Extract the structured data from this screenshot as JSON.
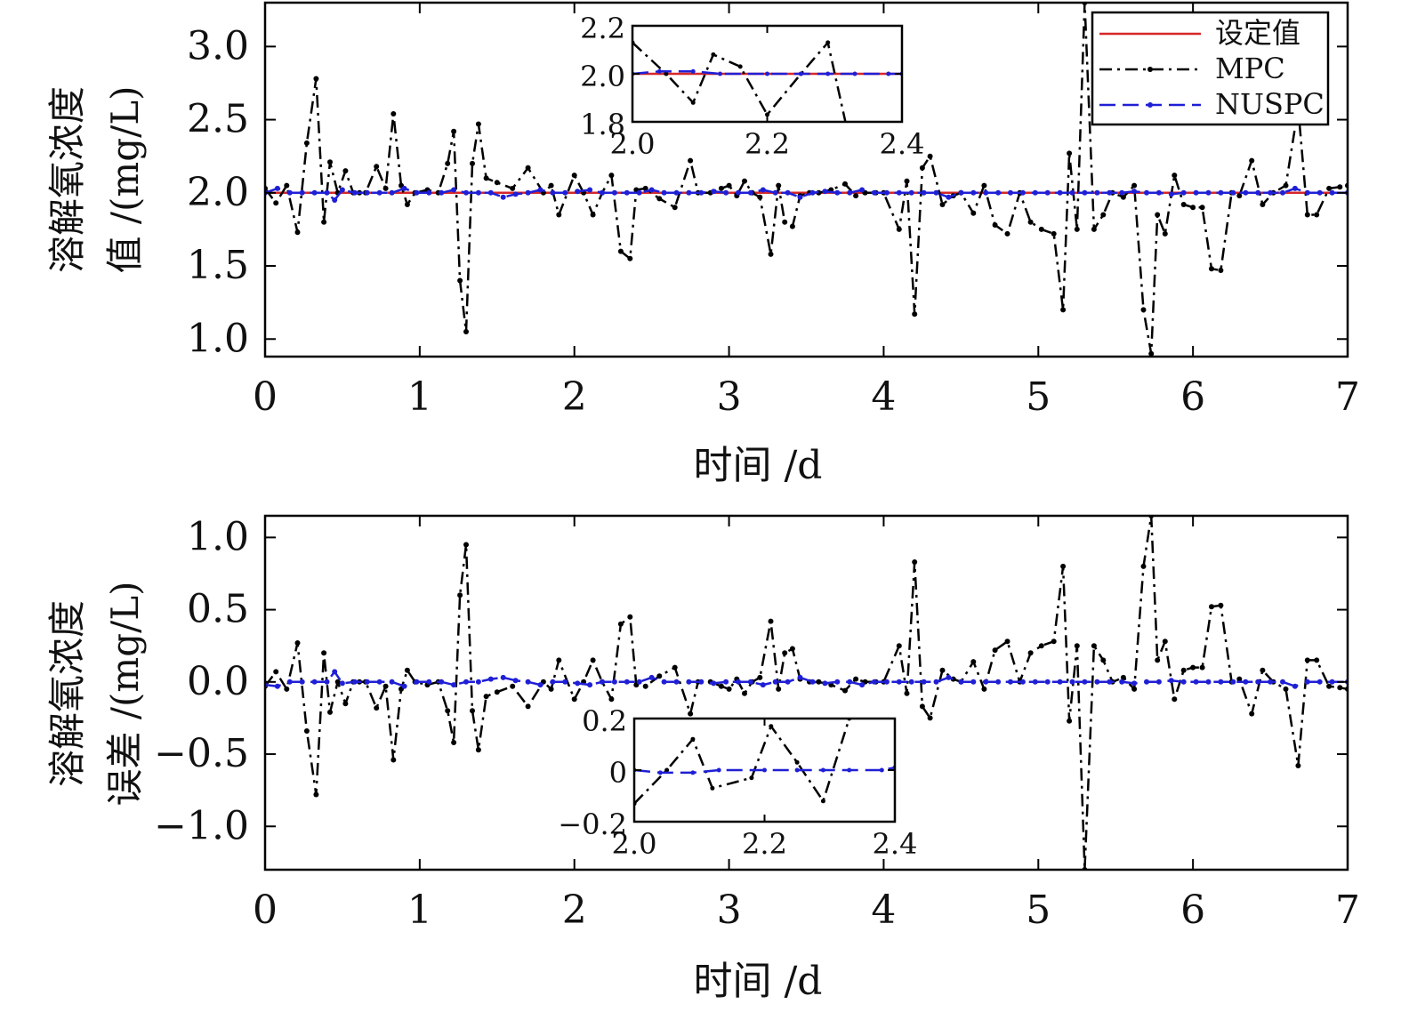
{
  "colors": {
    "setpoint": "#d62728",
    "mpc": "#000000",
    "nuspc": "#1f1fd6"
  },
  "chart_data": [
    {
      "type": "line",
      "ylabel_line1": "溶解氧浓度",
      "ylabel_line2": "值 /(mg/L)",
      "xlabel": "时间 /d",
      "xlim": [
        0,
        7
      ],
      "ylim": [
        0.88,
        3.3
      ],
      "xticks": [
        "0",
        "1",
        "2",
        "3",
        "4",
        "5",
        "6",
        "7"
      ],
      "yticks": [
        "1.0",
        "1.5",
        "2.0",
        "2.5",
        "3.0"
      ],
      "legend": {
        "position": "top-right",
        "entries": [
          "设定值",
          "MPC",
          "NUSPC"
        ]
      },
      "series": [
        {
          "name": "设定值",
          "style": "solid",
          "x": [
            0,
            7
          ],
          "y": [
            2.0,
            2.0
          ]
        },
        {
          "name": "MPC",
          "style": "dashdot",
          "x": [
            0.0,
            0.07,
            0.14,
            0.21,
            0.27,
            0.33,
            0.38,
            0.42,
            0.47,
            0.52,
            0.57,
            0.61,
            0.65,
            0.72,
            0.78,
            0.83,
            0.88,
            0.92,
            0.97,
            1.05,
            1.12,
            1.18,
            1.22,
            1.26,
            1.3,
            1.34,
            1.38,
            1.43,
            1.5,
            1.6,
            1.7,
            1.8,
            1.85,
            1.9,
            2.0,
            2.06,
            2.12,
            2.18,
            2.24,
            2.3,
            2.36,
            2.4,
            2.46,
            2.55,
            2.65,
            2.75,
            2.8,
            2.88,
            2.95,
            3.0,
            3.05,
            3.1,
            3.15,
            3.2,
            3.27,
            3.32,
            3.36,
            3.41,
            3.46,
            3.52,
            3.58,
            3.66,
            3.75,
            3.82,
            3.88,
            3.95,
            4.0,
            4.1,
            4.15,
            4.2,
            4.25,
            4.3,
            4.38,
            4.45,
            4.5,
            4.58,
            4.65,
            4.72,
            4.8,
            4.88,
            4.95,
            5.02,
            5.1,
            5.16,
            5.2,
            5.25,
            5.3,
            5.36,
            5.42,
            5.48,
            5.55,
            5.62,
            5.68,
            5.73,
            5.77,
            5.82,
            5.88,
            5.94,
            6.0,
            6.06,
            6.12,
            6.18,
            6.25,
            6.3,
            6.38,
            6.45,
            6.52,
            6.6,
            6.68,
            6.74,
            6.8,
            6.88,
            6.95,
            7.0
          ],
          "y": [
            2.03,
            1.93,
            2.05,
            1.73,
            2.34,
            2.78,
            1.8,
            2.21,
            2.0,
            2.15,
            2.0,
            2.0,
            2.0,
            2.18,
            2.03,
            2.54,
            2.05,
            1.92,
            2.0,
            2.02,
            2.0,
            2.2,
            2.42,
            1.4,
            1.05,
            2.2,
            2.47,
            2.1,
            2.07,
            2.03,
            2.17,
            2.0,
            2.05,
            1.85,
            2.12,
            2.0,
            1.85,
            2.0,
            2.12,
            1.6,
            1.55,
            2.02,
            2.03,
            1.96,
            1.9,
            2.22,
            2.0,
            2.0,
            2.03,
            2.05,
            1.98,
            2.08,
            2.0,
            1.97,
            1.58,
            2.05,
            1.8,
            1.77,
            1.98,
            2.0,
            2.0,
            2.02,
            2.06,
            1.98,
            2.0,
            2.0,
            2.0,
            1.75,
            2.08,
            1.17,
            2.17,
            2.25,
            1.92,
            1.98,
            2.0,
            1.86,
            2.05,
            1.78,
            1.72,
            2.0,
            1.8,
            1.75,
            1.72,
            1.2,
            2.27,
            1.75,
            3.3,
            1.75,
            1.85,
            2.0,
            1.97,
            2.05,
            1.2,
            0.9,
            1.85,
            1.72,
            2.12,
            1.92,
            1.9,
            1.9,
            1.48,
            1.47,
            2.0,
            1.98,
            2.22,
            1.92,
            2.0,
            2.05,
            2.58,
            1.85,
            1.85,
            2.03,
            2.04,
            2.05
          ]
        },
        {
          "name": "NUSPC",
          "style": "dashed",
          "x": [
            0.0,
            0.08,
            0.16,
            0.24,
            0.32,
            0.4,
            0.45,
            0.5,
            0.58,
            0.66,
            0.74,
            0.82,
            0.9,
            0.98,
            1.06,
            1.14,
            1.22,
            1.3,
            1.38,
            1.46,
            1.54,
            1.62,
            1.7,
            1.78,
            1.86,
            1.94,
            2.02,
            2.1,
            2.18,
            2.26,
            2.34,
            2.42,
            2.5,
            2.58,
            2.66,
            2.74,
            2.82,
            2.9,
            2.98,
            3.06,
            3.14,
            3.22,
            3.3,
            3.38,
            3.46,
            3.54,
            3.62,
            3.7,
            3.78,
            3.86,
            3.94,
            4.02,
            4.1,
            4.18,
            4.26,
            4.34,
            4.42,
            4.5,
            4.58,
            4.66,
            4.74,
            4.82,
            4.9,
            4.98,
            5.06,
            5.14,
            5.22,
            5.3,
            5.38,
            5.46,
            5.54,
            5.62,
            5.7,
            5.78,
            5.86,
            5.94,
            6.02,
            6.1,
            6.18,
            6.26,
            6.34,
            6.42,
            6.5,
            6.58,
            6.66,
            6.74,
            6.82,
            6.9,
            7.0
          ],
          "y": [
            2.0,
            2.03,
            2.0,
            2.0,
            2.0,
            2.0,
            1.95,
            2.02,
            2.0,
            2.0,
            2.0,
            2.0,
            2.03,
            2.0,
            2.0,
            2.0,
            2.02,
            2.0,
            2.0,
            2.0,
            1.97,
            1.99,
            2.0,
            2.02,
            2.0,
            2.0,
            2.01,
            2.02,
            2.0,
            2.0,
            2.0,
            2.0,
            2.02,
            2.0,
            2.0,
            2.0,
            2.0,
            2.01,
            2.0,
            2.0,
            2.0,
            2.02,
            2.0,
            2.0,
            1.97,
            2.0,
            2.01,
            2.0,
            2.0,
            2.02,
            2.0,
            2.0,
            2.0,
            2.0,
            2.0,
            2.0,
            1.97,
            2.0,
            2.0,
            2.0,
            2.0,
            2.0,
            2.0,
            2.0,
            2.0,
            2.0,
            2.0,
            2.0,
            2.0,
            2.0,
            2.0,
            2.01,
            2.0,
            2.0,
            1.99,
            2.0,
            2.0,
            2.0,
            2.0,
            2.0,
            2.0,
            2.0,
            2.0,
            2.0,
            2.03,
            2.0,
            2.0,
            2.0,
            2.0
          ]
        }
      ],
      "inset": {
        "xlim": [
          2.0,
          2.4
        ],
        "ylim": [
          1.8,
          2.2
        ],
        "xticks": [
          "2.0",
          "2.2",
          "2.4"
        ],
        "yticks": [
          "1.8",
          "2.0",
          "2.2"
        ],
        "series": [
          {
            "name": "设定值",
            "x": [
              2.0,
              2.4
            ],
            "y": [
              2.0,
              2.0
            ]
          },
          {
            "name": "MPC",
            "x": [
              2.0,
              2.05,
              2.09,
              2.12,
              2.16,
              2.2,
              2.25,
              2.29,
              2.32
            ],
            "y": [
              2.13,
              2.0,
              1.88,
              2.08,
              2.03,
              1.83,
              2.0,
              2.13,
              1.75
            ]
          },
          {
            "name": "NUSPC",
            "x": [
              2.0,
              2.04,
              2.09,
              2.13,
              2.2,
              2.25,
              2.29,
              2.33,
              2.38,
              2.4
            ],
            "y": [
              2.0,
              2.01,
              2.01,
              2.0,
              2.0,
              2.0,
              2.0,
              2.0,
              2.0,
              2.0
            ]
          }
        ]
      }
    },
    {
      "type": "line",
      "ylabel_line1": "溶解氧浓度",
      "ylabel_line2": "误差 /(mg/L)",
      "xlabel": "时间 /d",
      "xlim": [
        0,
        7
      ],
      "ylim": [
        -1.3,
        1.15
      ],
      "xticks": [
        "0",
        "1",
        "2",
        "3",
        "4",
        "5",
        "6",
        "7"
      ],
      "yticks": [
        "−1.0",
        "−0.5",
        "0.0",
        "0.5",
        "1.0"
      ],
      "series": [
        {
          "name": "MPC",
          "style": "dashdot",
          "x": [
            0.0,
            0.07,
            0.14,
            0.21,
            0.27,
            0.33,
            0.38,
            0.42,
            0.47,
            0.52,
            0.57,
            0.61,
            0.65,
            0.72,
            0.78,
            0.83,
            0.88,
            0.92,
            0.97,
            1.05,
            1.12,
            1.18,
            1.22,
            1.26,
            1.3,
            1.34,
            1.38,
            1.43,
            1.5,
            1.6,
            1.7,
            1.8,
            1.85,
            1.9,
            2.0,
            2.06,
            2.12,
            2.18,
            2.24,
            2.3,
            2.36,
            2.4,
            2.46,
            2.55,
            2.65,
            2.75,
            2.8,
            2.88,
            2.95,
            3.0,
            3.05,
            3.1,
            3.15,
            3.2,
            3.27,
            3.32,
            3.36,
            3.41,
            3.46,
            3.52,
            3.58,
            3.66,
            3.75,
            3.82,
            3.88,
            3.95,
            4.0,
            4.1,
            4.15,
            4.2,
            4.25,
            4.3,
            4.38,
            4.45,
            4.5,
            4.58,
            4.65,
            4.72,
            4.8,
            4.88,
            4.95,
            5.02,
            5.1,
            5.16,
            5.2,
            5.25,
            5.3,
            5.36,
            5.42,
            5.48,
            5.55,
            5.62,
            5.68,
            5.73,
            5.77,
            5.82,
            5.88,
            5.94,
            6.0,
            6.06,
            6.12,
            6.18,
            6.25,
            6.3,
            6.38,
            6.45,
            6.52,
            6.6,
            6.68,
            6.74,
            6.8,
            6.88,
            6.95,
            7.0
          ],
          "y": [
            -0.03,
            0.07,
            -0.05,
            0.27,
            -0.34,
            -0.78,
            0.2,
            -0.21,
            0.0,
            -0.15,
            0.0,
            0.0,
            0.0,
            -0.18,
            -0.03,
            -0.54,
            -0.05,
            0.08,
            0.0,
            -0.02,
            0.0,
            -0.2,
            -0.42,
            0.6,
            0.95,
            -0.2,
            -0.47,
            -0.1,
            -0.07,
            -0.03,
            -0.17,
            0.0,
            -0.05,
            0.15,
            -0.12,
            0.0,
            0.15,
            0.0,
            -0.12,
            0.4,
            0.45,
            -0.02,
            -0.03,
            0.04,
            0.1,
            -0.22,
            0.0,
            0.0,
            -0.03,
            -0.05,
            0.02,
            -0.08,
            0.0,
            0.03,
            0.42,
            -0.05,
            0.2,
            0.23,
            0.02,
            0.0,
            0.0,
            -0.02,
            -0.06,
            0.02,
            0.0,
            0.0,
            0.0,
            0.25,
            -0.08,
            0.83,
            -0.17,
            -0.25,
            0.08,
            0.02,
            0.0,
            0.14,
            -0.05,
            0.22,
            0.28,
            0.0,
            0.2,
            0.25,
            0.28,
            0.8,
            -0.27,
            0.25,
            -1.3,
            0.25,
            0.15,
            0.0,
            0.03,
            -0.05,
            0.8,
            1.15,
            0.15,
            0.28,
            -0.12,
            0.08,
            0.1,
            0.1,
            0.52,
            0.53,
            0.0,
            0.02,
            -0.22,
            0.08,
            0.0,
            -0.05,
            -0.58,
            0.15,
            0.15,
            -0.03,
            -0.04,
            -0.05
          ]
        },
        {
          "name": "NUSPC",
          "style": "dashed",
          "x": [
            0.0,
            0.08,
            0.16,
            0.24,
            0.32,
            0.4,
            0.45,
            0.5,
            0.58,
            0.66,
            0.74,
            0.82,
            0.9,
            0.98,
            1.06,
            1.14,
            1.22,
            1.3,
            1.38,
            1.46,
            1.54,
            1.62,
            1.7,
            1.78,
            1.86,
            1.94,
            2.02,
            2.1,
            2.18,
            2.26,
            2.34,
            2.42,
            2.5,
            2.58,
            2.66,
            2.74,
            2.82,
            2.9,
            2.98,
            3.06,
            3.14,
            3.22,
            3.3,
            3.38,
            3.46,
            3.54,
            3.62,
            3.7,
            3.78,
            3.86,
            3.94,
            4.02,
            4.1,
            4.18,
            4.26,
            4.34,
            4.42,
            4.5,
            4.58,
            4.66,
            4.74,
            4.82,
            4.9,
            4.98,
            5.06,
            5.14,
            5.22,
            5.3,
            5.38,
            5.46,
            5.54,
            5.62,
            5.7,
            5.78,
            5.86,
            5.94,
            6.02,
            6.1,
            6.18,
            6.26,
            6.34,
            6.42,
            6.5,
            6.58,
            6.66,
            6.74,
            6.82,
            6.9,
            7.0
          ],
          "y": [
            -0.02,
            -0.03,
            0.0,
            0.0,
            0.0,
            0.0,
            0.07,
            -0.01,
            0.0,
            0.0,
            0.0,
            0.0,
            -0.03,
            0.0,
            0.0,
            0.0,
            -0.02,
            0.0,
            0.0,
            0.02,
            0.03,
            0.01,
            0.0,
            -0.02,
            0.0,
            0.0,
            -0.01,
            -0.02,
            0.0,
            0.0,
            0.0,
            0.0,
            0.03,
            0.0,
            0.0,
            0.0,
            0.0,
            -0.01,
            0.0,
            0.0,
            0.0,
            -0.02,
            0.0,
            0.0,
            0.03,
            0.0,
            -0.01,
            0.0,
            0.0,
            -0.02,
            0.0,
            0.0,
            0.0,
            0.0,
            0.0,
            0.0,
            0.03,
            0.0,
            0.0,
            0.0,
            0.0,
            0.0,
            0.0,
            0.0,
            0.0,
            0.0,
            0.0,
            0.0,
            0.0,
            0.0,
            0.0,
            -0.01,
            0.0,
            0.0,
            0.01,
            0.0,
            0.0,
            0.0,
            0.0,
            0.0,
            0.0,
            0.0,
            0.0,
            0.0,
            -0.03,
            0.0,
            0.0,
            0.0,
            0.0
          ]
        }
      ],
      "inset": {
        "xlim": [
          2.0,
          2.4
        ],
        "ylim": [
          -0.2,
          0.2
        ],
        "xticks": [
          "2.0",
          "2.2",
          "2.4"
        ],
        "yticks": [
          "−0.2",
          "0",
          "0.2"
        ],
        "series": [
          {
            "name": "MPC",
            "x": [
              2.0,
              2.05,
              2.09,
              2.12,
              2.18,
              2.21,
              2.25,
              2.29,
              2.33
            ],
            "y": [
              -0.13,
              0.0,
              0.12,
              -0.07,
              -0.03,
              0.17,
              0.03,
              -0.12,
              0.2
            ]
          },
          {
            "name": "NUSPC",
            "x": [
              2.0,
              2.04,
              2.09,
              2.13,
              2.2,
              2.25,
              2.29,
              2.33,
              2.38,
              2.4
            ],
            "y": [
              0.0,
              -0.01,
              -0.01,
              0.0,
              0.0,
              0.0,
              0.0,
              0.0,
              0.0,
              0.01
            ]
          }
        ]
      }
    }
  ]
}
